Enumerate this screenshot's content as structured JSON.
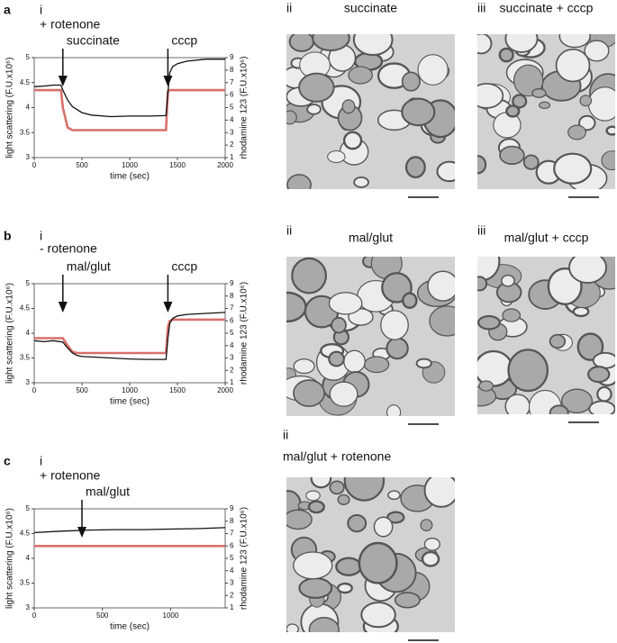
{
  "chart_data": [
    {
      "type": "line",
      "panel": "a",
      "label": "i",
      "title": "+ rotenone",
      "xlabel": "time (sec)",
      "ylabel": "light scattering (F.U.x10⁶)",
      "y2label": "rhodamine 123 (F.U.x10⁶)",
      "xlim": [
        0,
        2000
      ],
      "xticks": [
        0,
        500,
        1000,
        1500,
        2000
      ],
      "ylim": [
        3,
        5
      ],
      "yticks": [
        3,
        3.5,
        4,
        4.5,
        5
      ],
      "y2lim": [
        1,
        9
      ],
      "y2ticks": [
        1,
        2,
        3,
        4,
        5,
        6,
        7,
        8,
        9
      ],
      "x": [
        0,
        100,
        200,
        280,
        300,
        350,
        400,
        500,
        600,
        800,
        1000,
        1200,
        1380,
        1400,
        1420,
        1450,
        1500,
        1600,
        1800,
        2000
      ],
      "series": [
        {
          "color": "#111111",
          "values": [
            4.42,
            4.43,
            4.45,
            4.45,
            4.35,
            4.15,
            4.02,
            3.9,
            3.85,
            3.82,
            3.83,
            3.83,
            3.84,
            4.3,
            4.7,
            4.82,
            4.88,
            4.93,
            4.97,
            4.97
          ]
        },
        {
          "color": "#d9706b",
          "axis": "y2",
          "values": [
            6.4,
            6.4,
            6.4,
            6.4,
            5.0,
            3.4,
            3.2,
            3.2,
            3.2,
            3.2,
            3.2,
            3.2,
            3.2,
            6.3,
            6.4,
            6.4,
            6.4,
            6.4,
            6.4,
            6.4
          ]
        }
      ],
      "annotations": [
        {
          "text": "succinate",
          "x": 300
        },
        {
          "text": "cccp",
          "x": 1400
        }
      ]
    },
    {
      "type": "line",
      "panel": "b",
      "label": "i",
      "title": "- rotenone",
      "xlabel": "time (sec)",
      "ylabel": "light scattering (F.U.x10⁶)",
      "y2label": "rhodamine 123 (F.U.x10⁶)",
      "xlim": [
        0,
        2000
      ],
      "xticks": [
        0,
        500,
        1000,
        1500,
        2000
      ],
      "ylim": [
        3,
        5
      ],
      "yticks": [
        3,
        3.5,
        4,
        4.5,
        5
      ],
      "y2lim": [
        1,
        9
      ],
      "y2ticks": [
        1,
        2,
        3,
        4,
        5,
        6,
        7,
        8,
        9
      ],
      "x": [
        0,
        100,
        200,
        300,
        350,
        400,
        450,
        500,
        600,
        800,
        1000,
        1200,
        1380,
        1400,
        1420,
        1450,
        1500,
        1600,
        1800,
        2000
      ],
      "series": [
        {
          "color": "#111111",
          "values": [
            3.85,
            3.83,
            3.85,
            3.82,
            3.7,
            3.6,
            3.55,
            3.53,
            3.52,
            3.5,
            3.48,
            3.47,
            3.47,
            3.9,
            4.2,
            4.3,
            4.35,
            4.38,
            4.4,
            4.42
          ]
        },
        {
          "color": "#d9706b",
          "axis": "y2",
          "values": [
            4.6,
            4.6,
            4.6,
            4.6,
            4.0,
            3.5,
            3.4,
            3.4,
            3.4,
            3.4,
            3.4,
            3.4,
            3.4,
            5.5,
            6.0,
            6.1,
            6.1,
            6.1,
            6.1,
            6.1
          ]
        }
      ],
      "annotations": [
        {
          "text": "mal/glut",
          "x": 300
        },
        {
          "text": "cccp",
          "x": 1400
        }
      ]
    },
    {
      "type": "line",
      "panel": "c",
      "label": "i",
      "title": "+ rotenone",
      "xlabel": "time (sec)",
      "ylabel": "light scattering (F.U.x10⁶)",
      "y2label": "rhodamine 123 (F.U.x10⁶)",
      "xlim": [
        0,
        1400
      ],
      "xticks": [
        0,
        500,
        1000
      ],
      "ylim": [
        3,
        5
      ],
      "yticks": [
        3,
        3.5,
        4,
        4.5,
        5
      ],
      "y2lim": [
        1,
        9
      ],
      "y2ticks": [
        1,
        2,
        3,
        4,
        5,
        6,
        7,
        8,
        9
      ],
      "x": [
        0,
        200,
        400,
        600,
        800,
        1000,
        1200,
        1400
      ],
      "series": [
        {
          "color": "#111111",
          "values": [
            4.52,
            4.55,
            4.57,
            4.58,
            4.58,
            4.59,
            4.6,
            4.62
          ]
        },
        {
          "color": "#d9706b",
          "axis": "y2",
          "values": [
            6.0,
            6.0,
            6.0,
            6.0,
            6.0,
            6.0,
            6.0,
            6.0
          ]
        }
      ],
      "annotations": [
        {
          "text": "mal/glut",
          "x": 350
        }
      ]
    }
  ],
  "micrographs": [
    {
      "label": "ii",
      "title": "succinate"
    },
    {
      "label": "iii",
      "title": "succinate + cccp"
    },
    {
      "label": "ii",
      "title": "mal/glut"
    },
    {
      "label": "iii",
      "title": "mal/glut + cccp"
    },
    {
      "label": "ii",
      "title": "mal/glut + rotenone"
    }
  ]
}
